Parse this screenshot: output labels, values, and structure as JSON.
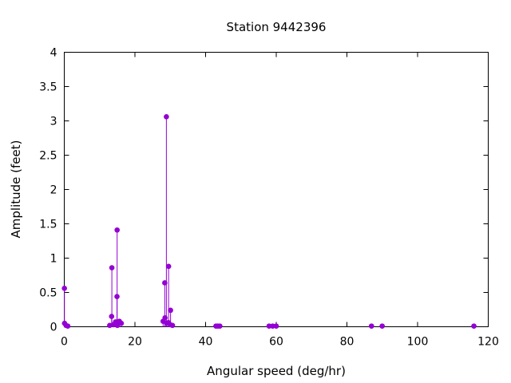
{
  "chart_data": {
    "type": "scatter",
    "style": "impulses-with-points",
    "title": "Station 9442396",
    "xlabel": "Angular speed (deg/hr)",
    "ylabel": "Amplitude (feet)",
    "xlim": [
      0,
      120
    ],
    "ylim": [
      0,
      4
    ],
    "xticks": [
      0,
      20,
      40,
      60,
      80,
      100,
      120
    ],
    "yticks": [
      0,
      0.5,
      1,
      1.5,
      2,
      2.5,
      3,
      3.5,
      4
    ],
    "ytick_labels": [
      "0",
      "0.5",
      "1",
      "1.5",
      "2",
      "2.5",
      "3",
      "3.5",
      "4"
    ],
    "grid": false,
    "legend": "none",
    "color": "#9400d3",
    "series": [
      {
        "x": [
          0.04,
          0.08,
          0.5,
          1.0,
          12.85,
          13.4,
          13.47,
          13.94,
          14.5,
          14.92,
          14.96,
          15.0,
          15.04,
          15.59,
          16.14,
          27.97,
          28.44,
          28.51,
          28.9,
          28.98,
          29.46,
          29.53,
          30.0,
          30.08,
          30.63,
          42.93,
          43.48,
          44.03,
          57.97,
          58.98,
          60.0,
          86.95,
          89.98,
          115.94
        ],
        "y": [
          0.56,
          0.05,
          0.02,
          0.01,
          0.02,
          0.15,
          0.86,
          0.03,
          0.07,
          0.44,
          1.41,
          0.03,
          0.02,
          0.08,
          0.05,
          0.08,
          0.64,
          0.13,
          3.06,
          0.05,
          0.06,
          0.88,
          0.03,
          0.24,
          0.02,
          0.01,
          0.01,
          0.01,
          0.01,
          0.01,
          0.01,
          0.01,
          0.01,
          0.01
        ]
      }
    ]
  }
}
